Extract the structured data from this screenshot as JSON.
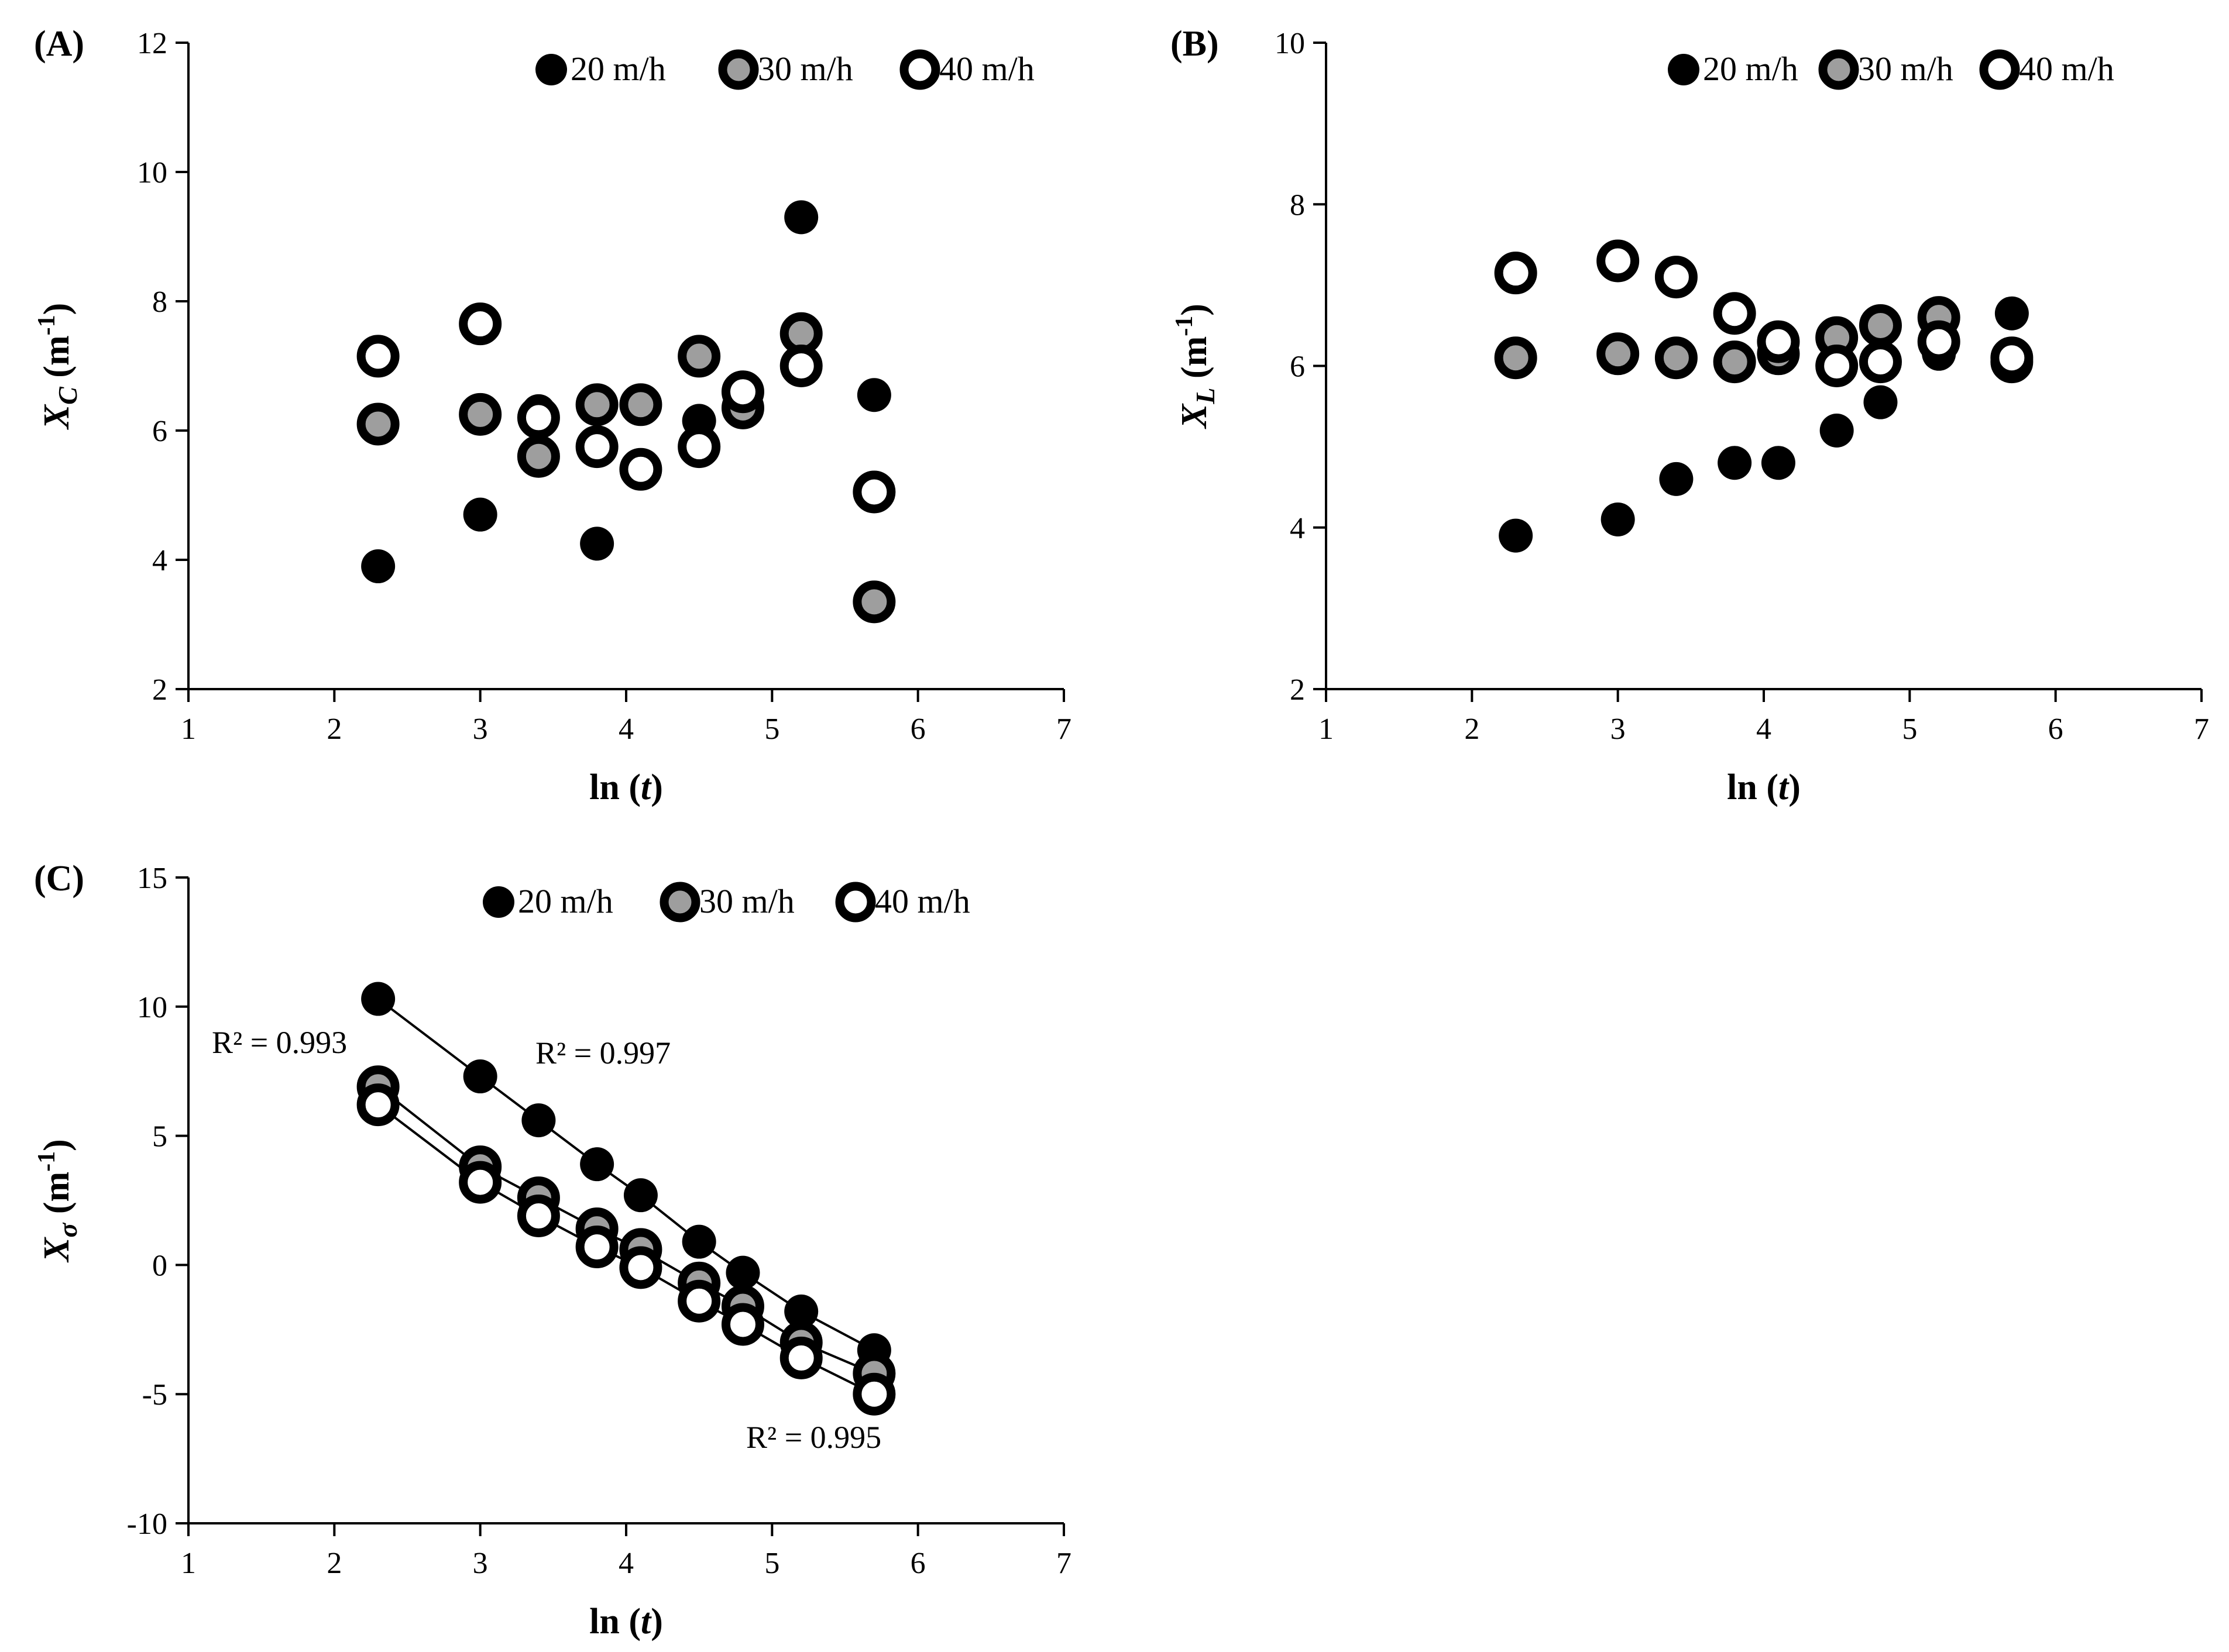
{
  "chart_data": [
    {
      "panel": "(A)",
      "type": "scatter",
      "xlabel_main": "ln (",
      "xlabel_var": "t",
      "xlabel_end": ")",
      "ylabel_var": "X",
      "ylabel_sub": "C",
      "ylabel_unit": " (m",
      "ylabel_exp": "-1",
      "ylabel_end": ")",
      "xlim": [
        1,
        7
      ],
      "ylim": [
        2,
        12
      ],
      "xticks": [
        1,
        2,
        3,
        4,
        5,
        6,
        7
      ],
      "yticks": [
        2,
        4,
        6,
        8,
        10,
        12
      ],
      "legend": [
        "20 m/h",
        "30 m/h",
        "40 m/h"
      ],
      "series": [
        {
          "name": "20 m/h",
          "x": [
            2.3,
            3.0,
            3.4,
            3.8,
            4.5,
            5.2,
            5.7
          ],
          "y": [
            3.9,
            4.7,
            6.3,
            4.25,
            6.15,
            9.3,
            6.55
          ]
        },
        {
          "name": "30 m/h",
          "x": [
            2.3,
            3.0,
            3.4,
            3.8,
            4.1,
            4.5,
            4.8,
            5.2,
            5.7
          ],
          "y": [
            6.1,
            6.25,
            5.6,
            6.4,
            6.4,
            7.15,
            6.35,
            7.5,
            3.35
          ]
        },
        {
          "name": "40 m/h",
          "x": [
            2.3,
            3.0,
            3.4,
            3.8,
            4.1,
            4.5,
            4.8,
            5.2,
            5.7
          ],
          "y": [
            7.15,
            7.65,
            6.2,
            5.75,
            5.4,
            5.75,
            6.6,
            7.0,
            5.05
          ]
        }
      ]
    },
    {
      "panel": "(B)",
      "type": "scatter",
      "xlabel_main": "ln (",
      "xlabel_var": "t",
      "xlabel_end": ")",
      "ylabel_var": "X",
      "ylabel_sub": "L",
      "ylabel_unit": " (m",
      "ylabel_exp": "-1",
      "ylabel_end": ")",
      "xlim": [
        1,
        7
      ],
      "ylim": [
        2,
        10
      ],
      "xticks": [
        1,
        2,
        3,
        4,
        5,
        6,
        7
      ],
      "yticks": [
        2,
        4,
        6,
        8,
        10
      ],
      "legend": [
        "20 m/h",
        "30 m/h",
        "40 m/h"
      ],
      "series": [
        {
          "name": "20 m/h",
          "x": [
            2.3,
            3.0,
            3.4,
            3.8,
            4.1,
            4.5,
            4.8,
            5.2,
            5.7
          ],
          "y": [
            3.9,
            4.1,
            4.6,
            4.8,
            4.8,
            5.2,
            5.55,
            6.15,
            6.65
          ]
        },
        {
          "name": "30 m/h",
          "x": [
            2.3,
            3.0,
            3.4,
            3.8,
            4.1,
            4.5,
            4.8,
            5.2,
            5.7
          ],
          "y": [
            6.1,
            6.15,
            6.1,
            6.05,
            6.15,
            6.35,
            6.5,
            6.6,
            6.05
          ]
        },
        {
          "name": "40 m/h",
          "x": [
            2.3,
            3.0,
            3.4,
            3.8,
            4.1,
            4.5,
            4.8,
            5.2,
            5.7
          ],
          "y": [
            7.15,
            7.3,
            7.1,
            6.65,
            6.3,
            6.0,
            6.05,
            6.3,
            6.1
          ]
        }
      ]
    },
    {
      "panel": "(C)",
      "type": "line",
      "xlabel_main": "ln (",
      "xlabel_var": "t",
      "xlabel_end": ")",
      "ylabel_var": "X",
      "ylabel_sub": "σ",
      "ylabel_unit": " (m",
      "ylabel_exp": "-1",
      "ylabel_end": ")",
      "xlim": [
        1,
        7
      ],
      "ylim": [
        -10,
        15
      ],
      "xticks": [
        1,
        2,
        3,
        4,
        5,
        6,
        7
      ],
      "yticks": [
        -10,
        -5,
        0,
        5,
        10,
        15
      ],
      "legend": [
        "20 m/h",
        "30 m/h",
        "40 m/h"
      ],
      "series": [
        {
          "name": "20 m/h",
          "x": [
            2.3,
            3.0,
            3.4,
            3.8,
            4.1,
            4.5,
            4.8,
            5.2,
            5.7
          ],
          "y": [
            10.3,
            7.3,
            5.6,
            3.9,
            2.7,
            0.9,
            -0.3,
            -1.8,
            -3.3
          ]
        },
        {
          "name": "30 m/h",
          "x": [
            2.3,
            3.0,
            3.4,
            3.8,
            4.1,
            4.5,
            4.8,
            5.2,
            5.7
          ],
          "y": [
            6.9,
            3.8,
            2.6,
            1.4,
            0.6,
            -0.7,
            -1.6,
            -3.0,
            -4.2
          ]
        },
        {
          "name": "40 m/h",
          "x": [
            2.3,
            3.0,
            3.4,
            3.8,
            4.1,
            4.5,
            4.8,
            5.2,
            5.7
          ],
          "y": [
            6.2,
            3.2,
            1.9,
            0.7,
            -0.1,
            -1.4,
            -2.3,
            -3.6,
            -5.0
          ]
        }
      ],
      "annotations": [
        {
          "text": "R² = 0.993",
          "series": "30 m/h"
        },
        {
          "text": "R² = 0.997",
          "series": "20 m/h"
        },
        {
          "text": "R² = 0.995",
          "series": "40 m/h"
        }
      ]
    }
  ],
  "colors": {
    "filled": "#000000",
    "grey_fill": "#9e9e9e",
    "open_fill": "#ffffff",
    "axis": "#000000"
  }
}
